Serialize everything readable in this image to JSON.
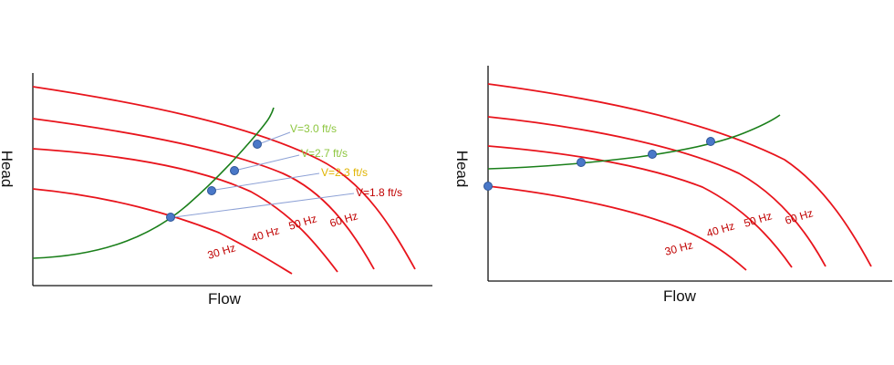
{
  "colors": {
    "pump_curve": "#e8141c",
    "system_curve": "#1a7f1a",
    "point_fill": "#4a78c8",
    "point_stroke": "#2f5597",
    "axis": "#111111",
    "leader_line": "#8ea2d6",
    "label_red": "#c00000"
  },
  "left_chart": {
    "x_axis_label": "Flow",
    "y_axis_label": "Head",
    "speed_labels": [
      "30 Hz",
      "40 Hz",
      "50 Hz",
      "60 Hz"
    ],
    "velocity_labels": [
      {
        "text": "V=3.0 ft/s",
        "color": "#8dc63f"
      },
      {
        "text": "V=2.7 ft/s",
        "color": "#8dc63f"
      },
      {
        "text": "V=2.3 ft/s",
        "color": "#e0b400"
      },
      {
        "text": "V=1.8 ft/s",
        "color": "#c00000"
      }
    ]
  },
  "right_chart": {
    "x_axis_label": "Flow",
    "y_axis_label": "Head",
    "speed_labels": [
      "30 Hz",
      "40 Hz",
      "50 Hz",
      "60 Hz"
    ]
  }
}
